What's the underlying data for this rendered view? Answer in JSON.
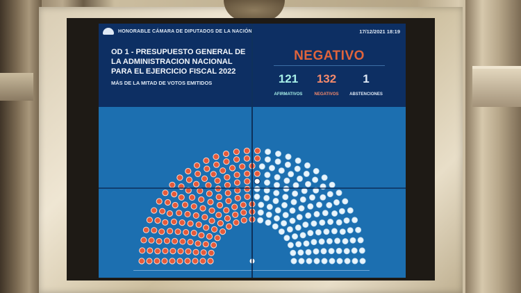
{
  "screen": {
    "chamber_name": "HONORABLE CÁMARA DE DIPUTADOS DE LA NACIÓN",
    "datetime": "17/12/2021 18:19",
    "title": "OD 1 - PRESUPUESTO GENERAL DE LA ADMINISTRACION NACIONAL PARA EL EJERCICIO FISCAL 2022",
    "subtitle": "MÁS DE LA MITAD DE VOTOS EMITIDOS",
    "result": "NEGATIVO",
    "counts": {
      "afirmativos": "121",
      "negativos": "132",
      "abstenciones": "1"
    },
    "labels": {
      "afirmativos": "AFIRMATIVOS",
      "negativos": "NEGATIVOS",
      "abstenciones": "ABSTENCIONES"
    }
  },
  "votes": {
    "afirmativos": 121,
    "negativos": 132,
    "abstenciones": 1
  },
  "colors": {
    "screen_bg": "#1c6fb0",
    "panel_bg": "#0d2f63",
    "negative": "#f48a6c",
    "negative_seat": "#e55a3a",
    "affirmative": "#a8f0e8",
    "affirmative_seat": "#e9f4fb",
    "result_text": "#e0643c"
  },
  "icons": [
    "chamber-logo-icon"
  ]
}
